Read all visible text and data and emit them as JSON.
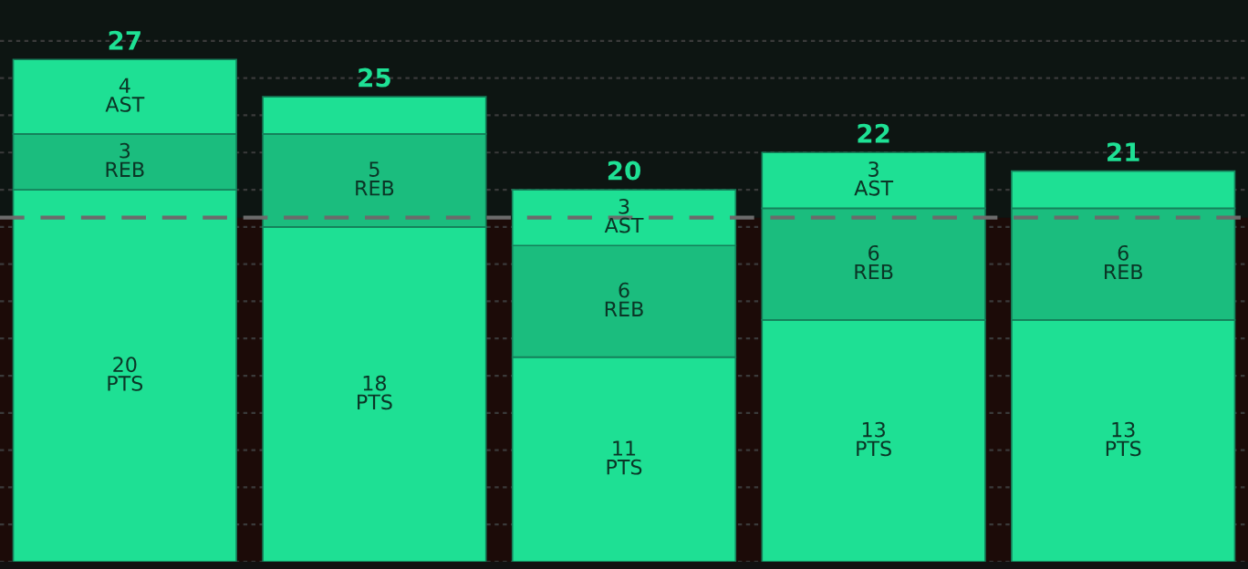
{
  "chart_data": {
    "type": "bar",
    "stacked": true,
    "categories": [
      null,
      null,
      null,
      null,
      null
    ],
    "series": [
      {
        "name": "PTS",
        "color": "#1ee094",
        "values": [
          20,
          18,
          11,
          13,
          13
        ],
        "value_labels": [
          "20",
          "18",
          "11",
          "13",
          "13"
        ]
      },
      {
        "name": "REB",
        "color": "#1bbd7e",
        "values": [
          3,
          5,
          6,
          6,
          6
        ],
        "value_labels": [
          "3",
          "5",
          "6",
          "6",
          "6"
        ]
      },
      {
        "name": "AST",
        "color": "#1ee094",
        "values": [
          4,
          2,
          3,
          3,
          2
        ],
        "value_labels": [
          "4",
          null,
          "3",
          "3",
          null
        ]
      }
    ],
    "totals": [
      "27",
      "25",
      "20",
      "22",
      "21"
    ],
    "ylim": [
      0,
      30.2
    ],
    "yticks": [
      {
        "value": 0,
        "label": null
      },
      {
        "value": 2,
        "label": null
      },
      {
        "value": 4,
        "label": null
      },
      {
        "value": 6,
        "label": null
      },
      {
        "value": 8,
        "label": null
      },
      {
        "value": 10,
        "label": null
      },
      {
        "value": 12,
        "label": null
      },
      {
        "value": 14,
        "label": null
      },
      {
        "value": 16,
        "label": null
      },
      {
        "value": 18,
        "label": null
      },
      {
        "value": 20,
        "label": null
      },
      {
        "value": 22,
        "label": null
      },
      {
        "value": 24,
        "label": null
      },
      {
        "value": 26,
        "label": null
      },
      {
        "value": 28,
        "label": null
      }
    ],
    "grid": "y",
    "legend": false,
    "ref_lines": [
      {
        "axis": "y",
        "value": 18.5,
        "color": "#6b6b6b",
        "line_style": "dashed"
      }
    ],
    "bands": [
      {
        "axis": "y",
        "from": 0,
        "to": 18.5,
        "color": "#1c0b08"
      }
    ]
  }
}
